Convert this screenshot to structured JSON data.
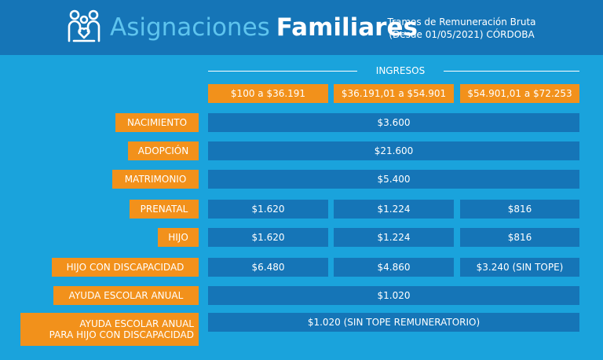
{
  "header": {
    "title_light": "Asignaciones",
    "title_bold": "Familiares",
    "subtitle_line1": "Tramos de Remuneración Bruta",
    "subtitle_line2": "(Desde 01/05/2021) CÓRDOBA",
    "logo_icon": "family-icon",
    "colors": {
      "header_bg": "#1575b7",
      "page_bg": "#1aa3dc",
      "accent": "#f2911b"
    }
  },
  "ingresos": {
    "label": "INGRESOS",
    "ranges": [
      "$100 a $36.191",
      "$36.191,01 a $54.901",
      "$54.901,01 a $72.253"
    ]
  },
  "rows": {
    "nacimiento": {
      "label": "NACIMIENTO",
      "value": "$3.600"
    },
    "adopcion": {
      "label": "ADOPCIÓN",
      "value": "$21.600"
    },
    "matrimonio": {
      "label": "MATRIMONIO",
      "value": "$5.400"
    },
    "prenatal": {
      "label": "PRENATAL",
      "values": [
        "$1.620",
        "$1.224",
        "$816"
      ]
    },
    "hijo": {
      "label": "HIJO",
      "values": [
        "$1.620",
        "$1.224",
        "$816"
      ]
    },
    "hijo_discapacidad": {
      "label": "HIJO CON DISCAPACIDAD",
      "values": [
        "$6.480",
        "$4.860",
        "$3.240 (SIN TOPE)"
      ]
    },
    "ayuda_escolar": {
      "label": "AYUDA ESCOLAR ANUAL",
      "value": "$1.020"
    },
    "ayuda_escolar_discapacidad": {
      "label_line1": "AYUDA ESCOLAR ANUAL",
      "label_line2": "PARA HIJO CON DISCAPACIDAD",
      "value": "$1.020 (SIN TOPE REMUNERATORIO)"
    }
  }
}
